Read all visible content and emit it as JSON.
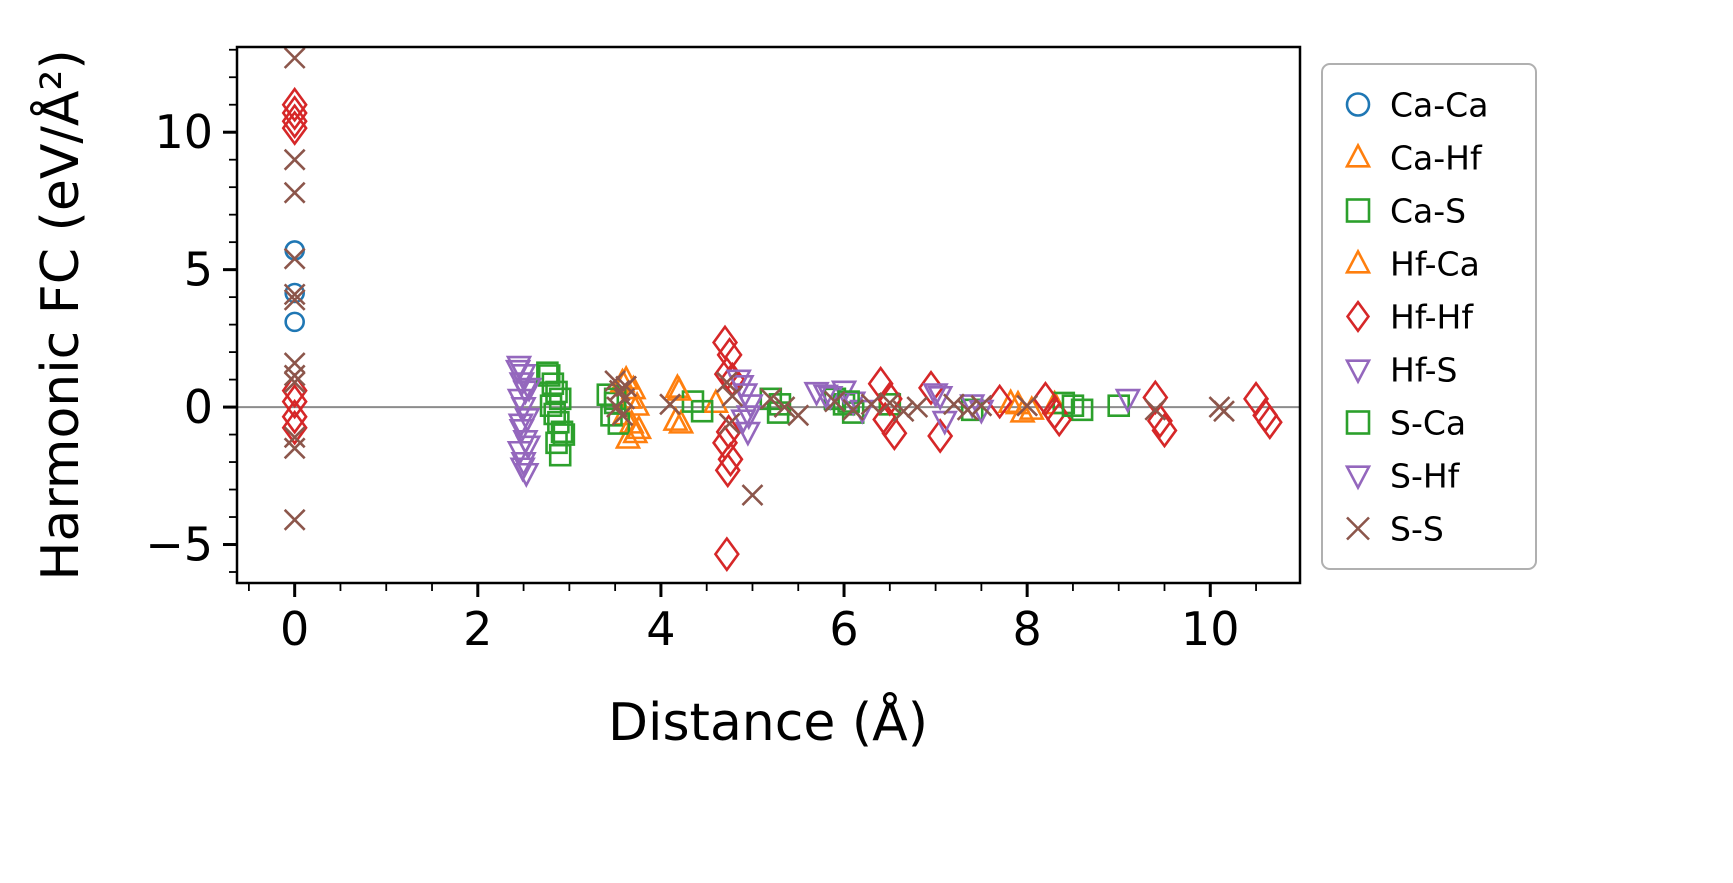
{
  "figure": {
    "background": "#ffffff",
    "zero_line_color": "#8c8c8c",
    "legend_border_color": "#b0b0b0"
  },
  "chart_data": {
    "type": "scatter",
    "title": "",
    "xlabel": "Distance (Å)",
    "ylabel": "Harmonic FC (eV/Å²)",
    "xlim": [
      -0.63,
      10.98
    ],
    "ylim": [
      -6.4,
      13.1
    ],
    "xticks": [
      0,
      2,
      4,
      6,
      8,
      10
    ],
    "yticks": [
      -5,
      0,
      5,
      10
    ],
    "x_minor_step": 0.5,
    "y_minor_step": 1,
    "grid": false,
    "zero_line": true,
    "legend_position": "outside-right",
    "series": [
      {
        "name": "Ca-Ca",
        "marker": "circle",
        "color": "#1f77b4",
        "points": [
          [
            0,
            5.7
          ],
          [
            0,
            4.15
          ],
          [
            0,
            3.1
          ]
        ]
      },
      {
        "name": "Ca-Hf",
        "marker": "triangle-up",
        "color": "#ff7f0e",
        "points": [
          [
            3.62,
            1.0
          ],
          [
            3.7,
            0.65
          ],
          [
            3.66,
            0.3
          ],
          [
            3.74,
            0.05
          ],
          [
            3.6,
            -0.3
          ],
          [
            3.68,
            -0.6
          ],
          [
            3.72,
            -0.95
          ],
          [
            3.64,
            -1.15
          ],
          [
            4.18,
            0.7
          ],
          [
            4.22,
            -0.6
          ],
          [
            4.6,
            0.15
          ],
          [
            7.82,
            0.15
          ],
          [
            7.95,
            -0.2
          ],
          [
            8.3,
            0.1
          ]
        ]
      },
      {
        "name": "Ca-S",
        "marker": "square",
        "color": "#2ca02c",
        "points": [
          [
            2.78,
            1.15
          ],
          [
            2.82,
            0.85
          ],
          [
            2.86,
            0.55
          ],
          [
            2.9,
            0.3
          ],
          [
            2.8,
            0.05
          ],
          [
            2.84,
            -0.25
          ],
          [
            2.88,
            -0.55
          ],
          [
            2.92,
            -0.9
          ],
          [
            2.86,
            -1.3
          ],
          [
            2.9,
            -1.75
          ],
          [
            3.42,
            0.45
          ],
          [
            3.5,
            0.15
          ],
          [
            3.46,
            -0.3
          ],
          [
            3.54,
            -0.6
          ],
          [
            4.35,
            0.2
          ],
          [
            4.45,
            -0.15
          ],
          [
            5.2,
            0.3
          ],
          [
            5.28,
            -0.2
          ],
          [
            5.9,
            0.3
          ],
          [
            6.0,
            0.1
          ],
          [
            6.1,
            -0.2
          ],
          [
            6.5,
            0.1
          ],
          [
            7.4,
            -0.1
          ],
          [
            8.4,
            0.15
          ],
          [
            8.6,
            -0.1
          ],
          [
            9.0,
            0.05
          ]
        ]
      },
      {
        "name": "Hf-Ca",
        "marker": "triangle-up",
        "color": "#ff7f0e",
        "points": [
          [
            3.58,
            0.9
          ],
          [
            3.76,
            -0.8
          ],
          [
            4.2,
            0.6
          ],
          [
            4.16,
            -0.5
          ],
          [
            7.9,
            0.1
          ],
          [
            8.05,
            -0.1
          ]
        ]
      },
      {
        "name": "Hf-Hf",
        "marker": "diamond",
        "color": "#d62728",
        "points": [
          [
            0,
            11.0
          ],
          [
            0,
            10.7
          ],
          [
            0,
            10.4
          ],
          [
            0,
            10.15
          ],
          [
            0,
            0.6
          ],
          [
            0,
            0.2
          ],
          [
            0,
            -0.35
          ],
          [
            0,
            -0.75
          ],
          [
            4.7,
            2.35
          ],
          [
            4.75,
            1.9
          ],
          [
            4.72,
            1.2
          ],
          [
            4.78,
            1.0
          ],
          [
            4.74,
            -0.9
          ],
          [
            4.7,
            -1.3
          ],
          [
            4.76,
            -1.9
          ],
          [
            4.73,
            -2.3
          ],
          [
            4.72,
            -5.35
          ],
          [
            6.4,
            0.85
          ],
          [
            6.5,
            0.3
          ],
          [
            6.45,
            -0.45
          ],
          [
            6.55,
            -0.95
          ],
          [
            6.95,
            0.7
          ],
          [
            7.05,
            -1.05
          ],
          [
            7.7,
            0.2
          ],
          [
            8.2,
            0.3
          ],
          [
            8.3,
            -0.2
          ],
          [
            8.35,
            -0.45
          ],
          [
            9.4,
            0.35
          ],
          [
            9.45,
            -0.5
          ],
          [
            9.5,
            -0.85
          ],
          [
            10.5,
            0.3
          ],
          [
            10.6,
            -0.3
          ],
          [
            10.65,
            -0.55
          ]
        ]
      },
      {
        "name": "Hf-S",
        "marker": "triangle-down",
        "color": "#9467bd",
        "points": [
          [
            2.45,
            1.5
          ],
          [
            2.5,
            1.2
          ],
          [
            2.48,
            0.9
          ],
          [
            2.52,
            0.6
          ],
          [
            2.46,
            0.3
          ],
          [
            2.5,
            0.0
          ],
          [
            2.54,
            -0.4
          ],
          [
            2.48,
            -0.8
          ],
          [
            2.52,
            -1.2
          ],
          [
            2.46,
            -1.6
          ],
          [
            2.5,
            -2.0
          ],
          [
            2.53,
            -2.4
          ],
          [
            4.85,
            1.0
          ],
          [
            4.92,
            0.5
          ],
          [
            4.98,
            0.1
          ],
          [
            4.9,
            -0.45
          ],
          [
            4.95,
            -0.9
          ],
          [
            5.7,
            0.55
          ],
          [
            5.85,
            0.4
          ],
          [
            6.0,
            0.6
          ],
          [
            6.1,
            0.2
          ],
          [
            6.2,
            -0.1
          ],
          [
            7.0,
            0.5
          ],
          [
            7.1,
            -0.5
          ],
          [
            7.4,
            0.1
          ],
          [
            9.1,
            0.3
          ]
        ]
      },
      {
        "name": "S-Ca",
        "marker": "square",
        "color": "#2ca02c",
        "points": [
          [
            2.76,
            1.25
          ],
          [
            2.94,
            -1.0
          ],
          [
            3.5,
            0.3
          ],
          [
            5.3,
            0.1
          ],
          [
            6.05,
            0.2
          ],
          [
            8.5,
            0.05
          ]
        ]
      },
      {
        "name": "S-Hf",
        "marker": "triangle-down",
        "color": "#9467bd",
        "points": [
          [
            2.44,
            1.35
          ],
          [
            2.56,
            0.7
          ],
          [
            2.47,
            -0.6
          ],
          [
            2.55,
            -1.4
          ],
          [
            2.49,
            -2.2
          ],
          [
            4.88,
            0.8
          ],
          [
            4.96,
            -0.3
          ],
          [
            5.8,
            0.45
          ],
          [
            7.05,
            0.4
          ],
          [
            7.5,
            -0.1
          ]
        ]
      },
      {
        "name": "S-S",
        "marker": "x",
        "color": "#8c564b",
        "points": [
          [
            0,
            12.7
          ],
          [
            0,
            9.0
          ],
          [
            0,
            7.8
          ],
          [
            0,
            5.4
          ],
          [
            0,
            4.1
          ],
          [
            0,
            3.9
          ],
          [
            0,
            1.6
          ],
          [
            0,
            1.15
          ],
          [
            0,
            0.9
          ],
          [
            0,
            -1.1
          ],
          [
            0,
            -1.5
          ],
          [
            0,
            -4.1
          ],
          [
            3.5,
            0.95
          ],
          [
            3.55,
            0.6
          ],
          [
            3.6,
            0.3
          ],
          [
            3.52,
            0.0
          ],
          [
            3.58,
            -0.3
          ],
          [
            3.62,
            0.75
          ],
          [
            4.1,
            0.1
          ],
          [
            4.72,
            0.9
          ],
          [
            4.78,
            0.4
          ],
          [
            4.75,
            -0.6
          ],
          [
            5.0,
            -3.2
          ],
          [
            5.2,
            0.3
          ],
          [
            5.35,
            0.0
          ],
          [
            5.5,
            -0.3
          ],
          [
            5.9,
            0.2
          ],
          [
            6.1,
            -0.1
          ],
          [
            6.3,
            0.1
          ],
          [
            6.5,
            0.15
          ],
          [
            6.65,
            -0.15
          ],
          [
            6.8,
            0.0
          ],
          [
            7.2,
            0.1
          ],
          [
            7.35,
            -0.1
          ],
          [
            7.5,
            0.05
          ],
          [
            8.0,
            0.05
          ],
          [
            9.4,
            -0.1
          ],
          [
            10.1,
            0.0
          ],
          [
            10.15,
            -0.15
          ]
        ]
      }
    ]
  }
}
